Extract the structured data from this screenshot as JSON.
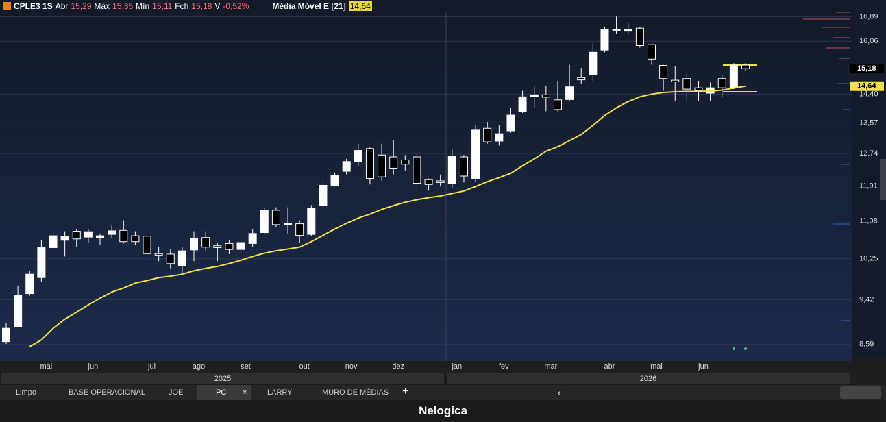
{
  "header": {
    "symbol": "CPLE3 1S",
    "open_label": "Abr",
    "open": "15,29",
    "high_label": "Máx",
    "high": "15,35",
    "low_label": "Mín",
    "low": "15,11",
    "close_label": "Fch",
    "close": "15,18",
    "var_label": "V",
    "var": "-0,52%",
    "indicator": "Média Móvel E [21]",
    "indicator_value": "14,64"
  },
  "chart_data": {
    "type": "candlestick",
    "log_scale": true,
    "grid": true,
    "categories": [
      null,
      null,
      null,
      "mai",
      null,
      null,
      null,
      "jun",
      null,
      null,
      null,
      null,
      "jul",
      null,
      null,
      null,
      "ago",
      null,
      null,
      null,
      "set",
      null,
      null,
      null,
      null,
      "out",
      null,
      null,
      null,
      "nov",
      null,
      null,
      null,
      "dez",
      null,
      null,
      null,
      null,
      "jan",
      null,
      null,
      null,
      "fev",
      null,
      null,
      null,
      "mar",
      null,
      null,
      null,
      null,
      "abr",
      null,
      null,
      null,
      "mai",
      null,
      null,
      null,
      "jun",
      null,
      null,
      null,
      null
    ],
    "years": [
      "2025",
      "2026"
    ],
    "ylim": [
      8.3,
      17.05
    ],
    "yticks": [
      {
        "value": 8.59,
        "label": "8,59"
      },
      {
        "value": 9.42,
        "label": "9,42"
      },
      {
        "value": 10.25,
        "label": "10,25"
      },
      {
        "value": 11.08,
        "label": "11,08"
      },
      {
        "value": 11.91,
        "label": "11,91"
      },
      {
        "value": 12.74,
        "label": "12,74"
      },
      {
        "value": 13.57,
        "label": "13,57"
      },
      {
        "value": 14.4,
        "label": "14,40"
      },
      {
        "value": 16.06,
        "label": "16,06"
      },
      {
        "value": 16.89,
        "label": "16,89"
      }
    ],
    "up_color": "#ffffff",
    "down_color": "#000000",
    "open": [
      8.64,
      8.91,
      9.54,
      9.86,
      10.49,
      10.65,
      10.85,
      10.72,
      10.7,
      10.78,
      10.87,
      10.75,
      10.74,
      10.36,
      10.35,
      10.1,
      10.44,
      10.71,
      10.53,
      10.58,
      10.45,
      10.58,
      10.82,
      11.33,
      11.0,
      11.02,
      10.78,
      11.45,
      11.93,
      12.28,
      12.52,
      12.87,
      12.7,
      12.65,
      12.57,
      12.65,
      12.07,
      12.04,
      11.98,
      12.65,
      12.1,
      13.42,
      13.07,
      13.35,
      13.88,
      14.33,
      14.38,
      14.23,
      14.24,
      14.9,
      15.0,
      15.77,
      16.43,
      16.42,
      16.5,
      15.95,
      15.28,
      14.82,
      14.87,
      14.59,
      14.43,
      14.87,
      14.6,
      15.29
    ],
    "high": [
      8.98,
      9.7,
      10.0,
      10.66,
      10.9,
      10.85,
      10.9,
      10.9,
      10.8,
      10.98,
      11.1,
      10.85,
      10.78,
      10.5,
      10.45,
      10.5,
      10.85,
      10.85,
      10.6,
      10.65,
      10.72,
      10.9,
      11.38,
      11.4,
      11.4,
      11.1,
      11.45,
      12.05,
      12.25,
      12.6,
      13.0,
      12.9,
      13.0,
      13.1,
      12.7,
      12.75,
      12.1,
      12.2,
      12.85,
      12.7,
      13.5,
      13.6,
      13.5,
      14.0,
      14.5,
      14.65,
      14.65,
      14.8,
      15.3,
      15.2,
      16.0,
      16.55,
      16.9,
      16.7,
      16.55,
      15.95,
      15.3,
      15.25,
      15.05,
      14.8,
      14.75,
      15.0,
      15.35,
      15.35
    ],
    "low": [
      8.6,
      8.9,
      9.5,
      9.78,
      10.45,
      10.3,
      10.5,
      10.6,
      10.55,
      10.7,
      10.58,
      10.55,
      10.2,
      10.2,
      10.05,
      9.95,
      10.2,
      10.42,
      10.2,
      10.35,
      10.35,
      10.5,
      10.8,
      10.95,
      10.8,
      10.6,
      10.75,
      11.4,
      11.9,
      12.2,
      12.4,
      11.95,
      12.05,
      12.2,
      12.3,
      11.8,
      11.8,
      11.9,
      11.85,
      12.0,
      12.0,
      13.0,
      12.95,
      13.3,
      13.85,
      14.0,
      13.9,
      13.9,
      14.2,
      14.7,
      14.8,
      15.7,
      16.3,
      16.3,
      15.85,
      15.3,
      14.5,
      14.2,
      14.2,
      14.2,
      14.2,
      14.3,
      14.55,
      15.11
    ],
    "close": [
      8.88,
      9.51,
      9.93,
      10.49,
      10.75,
      10.73,
      10.68,
      10.84,
      10.75,
      10.86,
      10.62,
      10.62,
      10.36,
      10.33,
      10.15,
      10.42,
      10.69,
      10.5,
      10.49,
      10.45,
      10.6,
      10.8,
      11.33,
      11.0,
      11.03,
      10.76,
      11.37,
      11.93,
      12.17,
      12.53,
      12.82,
      12.1,
      12.14,
      12.36,
      12.46,
      11.98,
      11.95,
      12.0,
      12.67,
      12.16,
      13.37,
      13.05,
      13.27,
      13.79,
      14.32,
      14.38,
      14.31,
      13.95,
      14.62,
      14.83,
      15.7,
      16.45,
      16.45,
      16.46,
      15.92,
      15.48,
      14.87,
      14.77,
      14.55,
      14.5,
      14.59,
      14.59,
      15.29,
      15.18
    ],
    "ema": {
      "color": "#f2e04a",
      "values": [
        null,
        null,
        8.55,
        8.67,
        8.88,
        9.05,
        9.18,
        9.32,
        9.45,
        9.57,
        9.65,
        9.75,
        9.8,
        9.86,
        9.89,
        9.93,
        10.0,
        10.05,
        10.09,
        10.15,
        10.22,
        10.3,
        10.37,
        10.42,
        10.46,
        10.5,
        10.62,
        10.76,
        10.9,
        11.03,
        11.15,
        11.24,
        11.35,
        11.44,
        11.52,
        11.58,
        11.63,
        11.67,
        11.73,
        11.79,
        11.9,
        12.02,
        12.12,
        12.23,
        12.42,
        12.6,
        12.8,
        12.92,
        13.08,
        13.25,
        13.5,
        13.78,
        14.0,
        14.18,
        14.32,
        14.4,
        14.45,
        14.47,
        14.48,
        14.48,
        14.49,
        14.52,
        14.58,
        14.64
      ]
    },
    "last_price": {
      "value": 15.18,
      "label": "15,18"
    },
    "ema_last": {
      "value": 14.64,
      "label": "14,64"
    }
  },
  "tabs": [
    "Limpo",
    "BASE OPERACIONAL",
    "JOE",
    "PC",
    "LARRY",
    "MURO DE MÉDIAS"
  ],
  "brand": "Nelogica"
}
